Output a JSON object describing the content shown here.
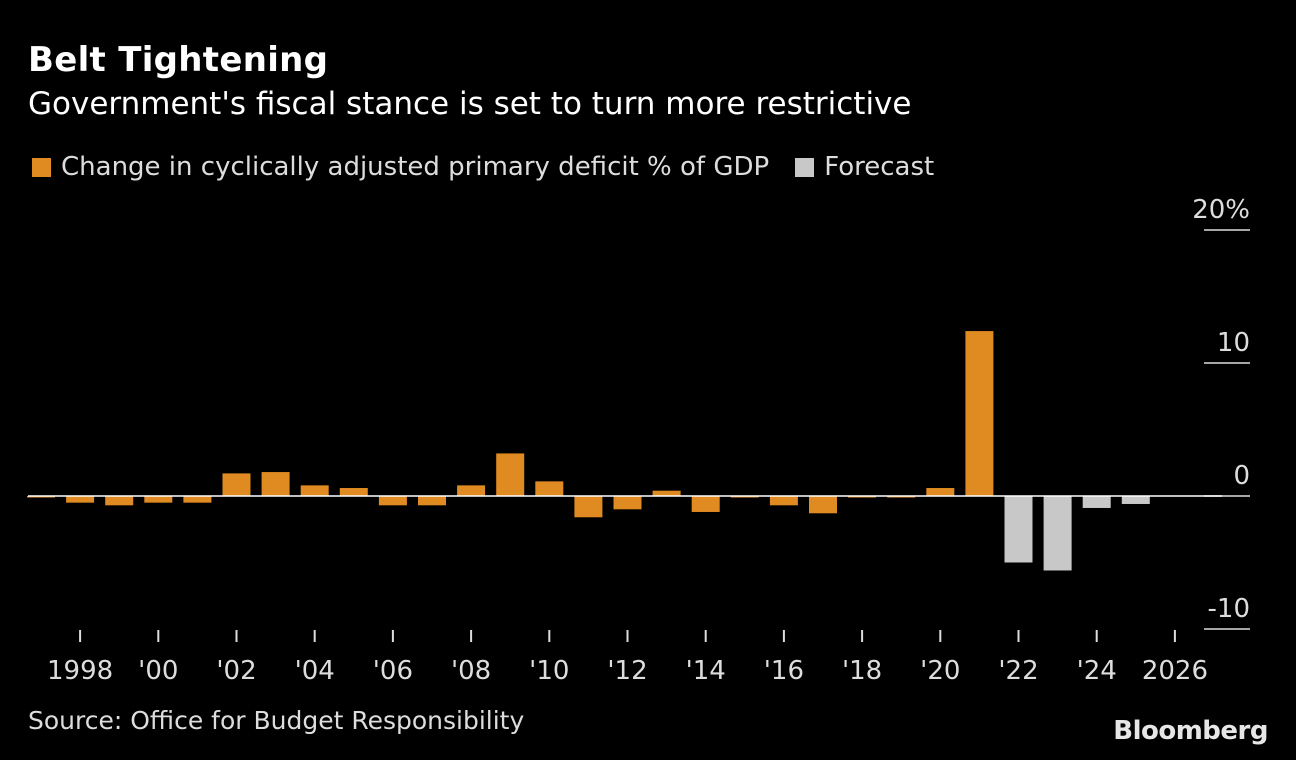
{
  "header": {
    "title": "Belt Tightening",
    "subtitle": "Government's fiscal stance is set to turn more restrictive"
  },
  "legend": [
    {
      "label": "Change in cyclically adjusted primary deficit % of GDP",
      "color": "#E08A22"
    },
    {
      "label": "Forecast",
      "color": "#C8C8C8"
    }
  ],
  "footer": {
    "source": "Source: Office for Budget Responsibility",
    "brand": "Bloomberg"
  },
  "chart_data": {
    "type": "bar",
    "title": "Belt Tightening",
    "subtitle": "Government's fiscal stance is set to turn more restrictive",
    "xlabel": "",
    "ylabel": "",
    "ylim": [
      -10,
      20
    ],
    "yticks": [
      -10,
      0,
      10,
      20
    ],
    "ytick_labels": [
      "-10",
      "0",
      "10",
      "20%"
    ],
    "xtick_labels": [
      "1998",
      "'00",
      "'02",
      "'04",
      "'06",
      "'08",
      "'10",
      "'12",
      "'14",
      "'16",
      "'18",
      "'20",
      "'22",
      "'24",
      "2026"
    ],
    "xticks_years": [
      1998,
      2000,
      2002,
      2004,
      2006,
      2008,
      2010,
      2012,
      2014,
      2016,
      2018,
      2020,
      2022,
      2024,
      2026
    ],
    "grid": false,
    "legend_position": "top-left",
    "colors": {
      "actual": "#E08A22",
      "forecast": "#C8C8C8",
      "zero_line": "#FFFFFF"
    },
    "series": [
      {
        "name": "Change in cyclically adjusted primary deficit % of GDP",
        "years": [
          1997,
          1998,
          1999,
          2000,
          2001,
          2002,
          2003,
          2004,
          2005,
          2006,
          2007,
          2008,
          2009,
          2010,
          2011,
          2012,
          2013,
          2014,
          2015,
          2016,
          2017,
          2018,
          2019,
          2020,
          2021
        ],
        "values": [
          -0.1,
          -0.5,
          -0.7,
          -0.5,
          -0.5,
          1.7,
          1.8,
          0.8,
          0.6,
          -0.7,
          -0.7,
          0.8,
          3.2,
          1.1,
          -1.6,
          -1.0,
          0.4,
          -1.2,
          0.0,
          -0.7,
          -1.3,
          -0.1,
          -0.1,
          0.6,
          12.4
        ]
      },
      {
        "name": "Forecast",
        "years": [
          2022,
          2023,
          2024,
          2025
        ],
        "values": [
          -5.0,
          -5.6,
          -0.9,
          -0.6
        ]
      }
    ]
  }
}
